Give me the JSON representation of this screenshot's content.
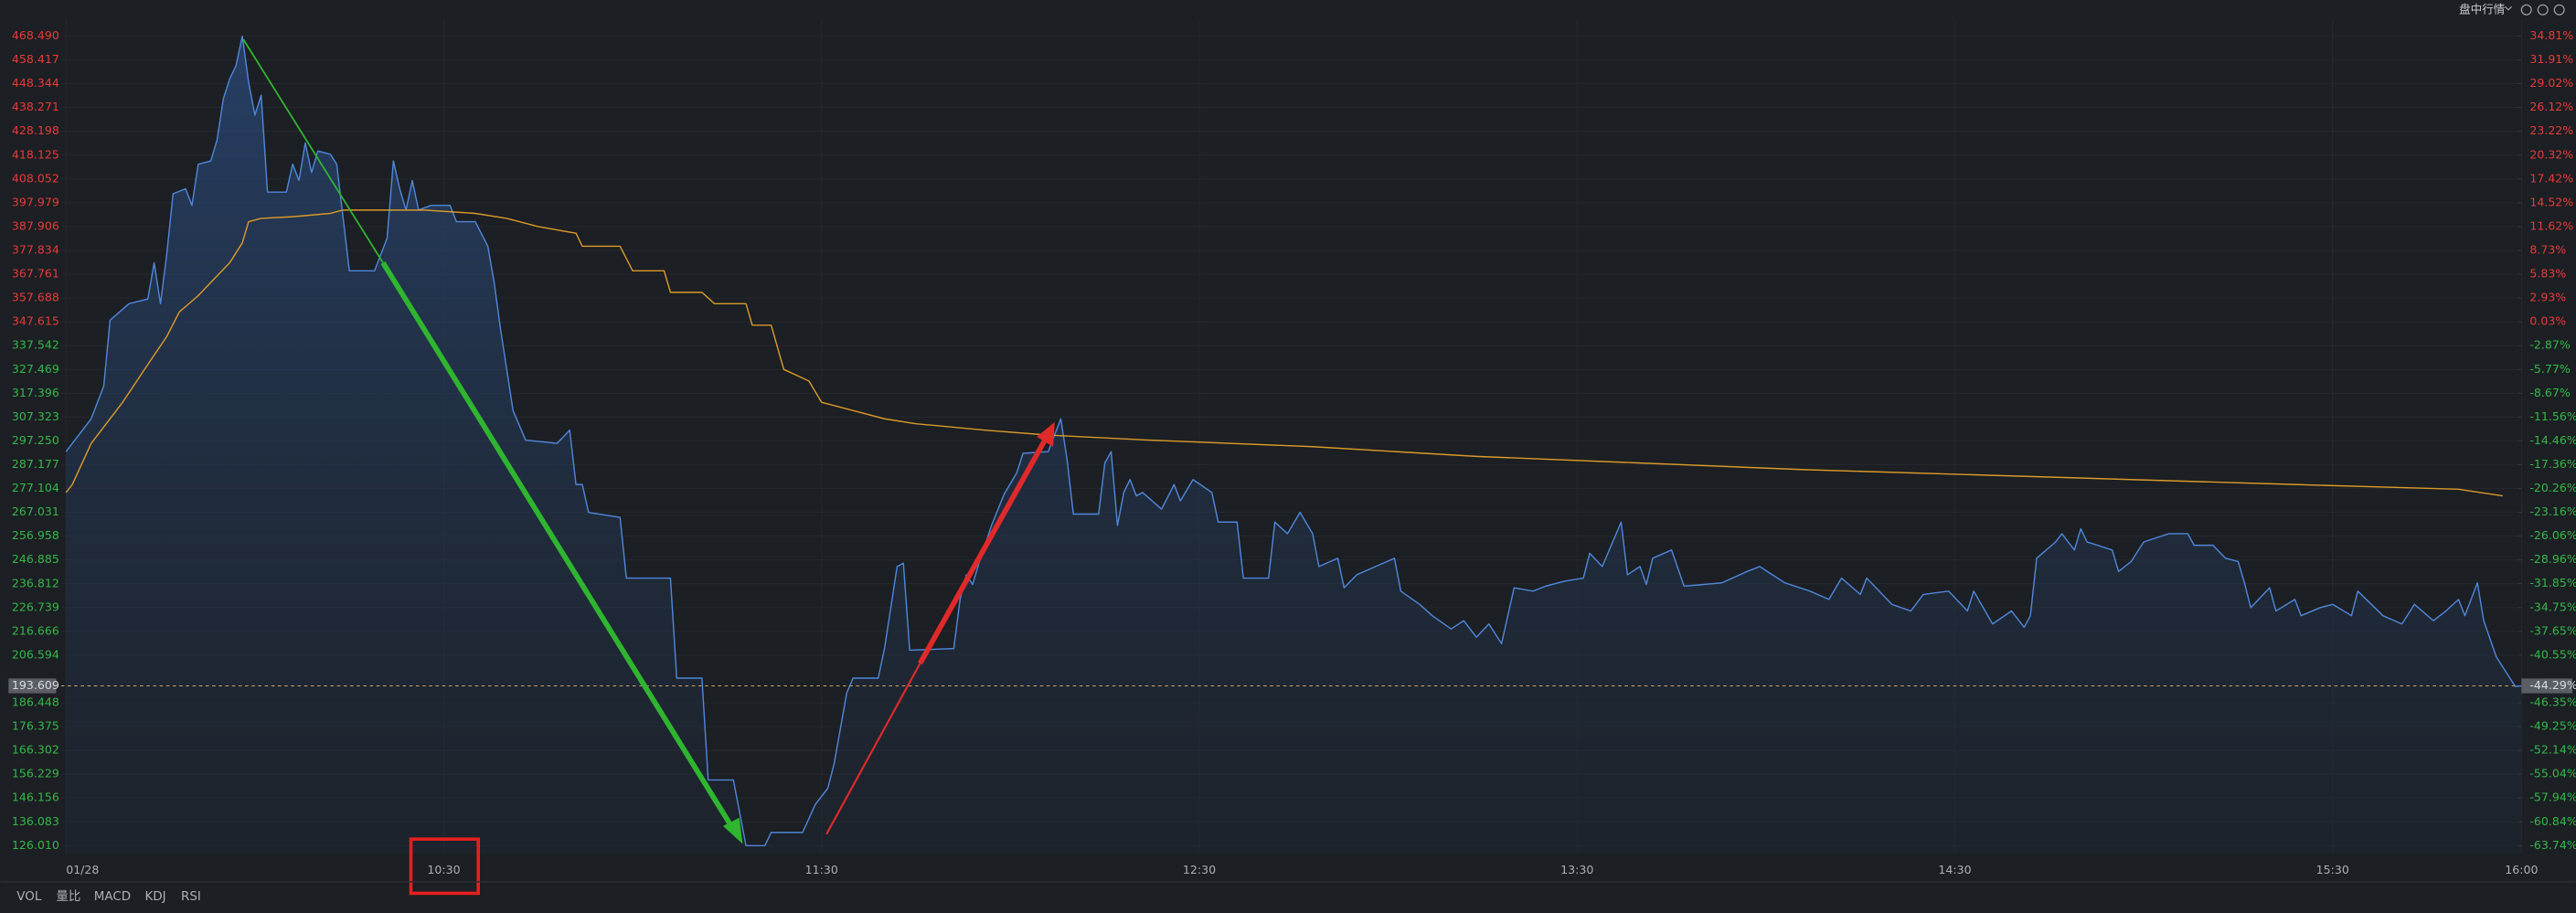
{
  "toolbar": {
    "title": "盘中行情"
  },
  "tabs": [
    "VOL",
    "量比",
    "MACD",
    "KDJ",
    "RSI"
  ],
  "chart_data": {
    "type": "line",
    "grid": true,
    "up_color": "#e83a3a",
    "down_color": "#35b84a",
    "xlim": [
      0,
      390
    ],
    "xticks": [
      {
        "value": 0,
        "label": "01/28"
      },
      {
        "value": 60,
        "label": "10:30"
      },
      {
        "value": 120,
        "label": "11:30"
      },
      {
        "value": 180,
        "label": "12:30"
      },
      {
        "value": 240,
        "label": "13:30"
      },
      {
        "value": 300,
        "label": "14:30"
      },
      {
        "value": 360,
        "label": "15:30"
      },
      {
        "value": 390,
        "label": "16:00"
      }
    ],
    "ylim": [
      126.01,
      468.49
    ],
    "yticks": [
      {
        "value": 468.49,
        "label": "468.490"
      },
      458.417,
      448.344,
      438.271,
      428.198,
      418.125,
      408.052,
      397.979,
      387.906,
      377.834,
      367.761,
      357.688,
      347.615,
      337.542,
      327.469,
      317.396,
      307.323,
      {
        "value": 297.25,
        "label": "297.250"
      },
      287.177,
      277.104,
      267.031,
      256.958,
      246.885,
      236.812,
      226.739,
      216.666,
      206.594,
      186.448,
      176.375,
      166.302,
      156.229,
      146.156,
      136.083,
      {
        "value": 126.01,
        "label": "126.010"
      }
    ],
    "y2lim": [
      -63.74,
      34.81
    ],
    "y2ticks": [
      {
        "value": 34.81,
        "label": "34.81%"
      },
      {
        "value": 31.91,
        "label": "31.91%"
      },
      {
        "value": 29.02,
        "label": "29.02%"
      },
      {
        "value": 26.12,
        "label": "26.12%"
      },
      {
        "value": 23.22,
        "label": "23.22%"
      },
      {
        "value": 20.32,
        "label": "20.32%"
      },
      {
        "value": 17.42,
        "label": "17.42%"
      },
      {
        "value": 14.52,
        "label": "14.52%"
      },
      {
        "value": 11.62,
        "label": "11.62%"
      },
      {
        "value": 8.73,
        "label": "8.73%"
      },
      {
        "value": 5.83,
        "label": "5.83%"
      },
      {
        "value": 2.93,
        "label": "2.93%"
      },
      {
        "value": 0.03,
        "label": "0.03%"
      },
      {
        "value": -2.87,
        "label": "-2.87%"
      },
      {
        "value": -5.77,
        "label": "-5.77%"
      },
      {
        "value": -8.67,
        "label": "-8.67%"
      },
      {
        "value": -11.56,
        "label": "-11.56%"
      },
      {
        "value": -14.46,
        "label": "-14.46%"
      },
      {
        "value": -17.36,
        "label": "-17.36%"
      },
      {
        "value": -20.26,
        "label": "-20.26%"
      },
      {
        "value": -23.16,
        "label": "-23.16%"
      },
      {
        "value": -26.06,
        "label": "-26.06%"
      },
      {
        "value": -28.96,
        "label": "-28.96%"
      },
      {
        "value": -31.85,
        "label": "-31.85%"
      },
      {
        "value": -34.75,
        "label": "-34.75%"
      },
      {
        "value": -37.65,
        "label": "-37.65%"
      },
      {
        "value": -40.55,
        "label": "-40.55%"
      },
      {
        "value": -46.35,
        "label": "-46.35%"
      },
      {
        "value": -49.25,
        "label": "-49.25%"
      },
      {
        "value": -52.14,
        "label": "-52.14%"
      },
      {
        "value": -55.04,
        "label": "-55.04%"
      },
      {
        "value": -57.94,
        "label": "-57.94%"
      },
      {
        "value": -60.84,
        "label": "-60.84%"
      },
      {
        "value": -63.74,
        "label": "-63.74%"
      }
    ],
    "last": {
      "value": 193.609,
      "y2": {
        "value": -44.29,
        "label": "-44.29%"
      }
    },
    "series": [
      {
        "color": "#4f86d9",
        "fill": true,
        "x": [
          0,
          4,
          6,
          7,
          10,
          13,
          14,
          15,
          16,
          17,
          19,
          20,
          21,
          23,
          24,
          25,
          26,
          27,
          28,
          29,
          30,
          31,
          32,
          35,
          36,
          37,
          38,
          39,
          40,
          42,
          43,
          45,
          49,
          51,
          52,
          53,
          54,
          55,
          56,
          58,
          61,
          62,
          65,
          67,
          68,
          69,
          70,
          71,
          73,
          78,
          80,
          81,
          82,
          83,
          88,
          89,
          96,
          97,
          101,
          102,
          106,
          108,
          111,
          112,
          117,
          119,
          121,
          122,
          124,
          125,
          129,
          130,
          131,
          132,
          133,
          134,
          141,
          142,
          143,
          144,
          145,
          147,
          149,
          151,
          152,
          156,
          157,
          158,
          159,
          160,
          164,
          165,
          166,
          167,
          168,
          169,
          170,
          171,
          174,
          176,
          177,
          179,
          182,
          183,
          186,
          187,
          191,
          192,
          194,
          196,
          198,
          199,
          202,
          203,
          205,
          208,
          211,
          212,
          215,
          217,
          220,
          222,
          224,
          226,
          228,
          230,
          233,
          235,
          238,
          241,
          242,
          244,
          247,
          248,
          250,
          251,
          252,
          255,
          257,
          263,
          267,
          269,
          273,
          277,
          280,
          282,
          285,
          286,
          290,
          293,
          295,
          299,
          302,
          303,
          306,
          309,
          311,
          312,
          313,
          316,
          317,
          319,
          320,
          321,
          325,
          326,
          328,
          330,
          334,
          337,
          338,
          341,
          343,
          345,
          346,
          347,
          350,
          351,
          354,
          355,
          358,
          360,
          363,
          364,
          368,
          371,
          373,
          376,
          378,
          380,
          381,
          383,
          384,
          386,
          389,
          390
        ],
        "values": [
          292.7,
          306.6,
          320.5,
          348.3,
          355.3,
          357.3,
          372.6,
          355.3,
          376.1,
          401.8,
          403.9,
          396.9,
          414.3,
          415.7,
          424.7,
          442.1,
          450.4,
          456,
          468.49,
          449,
          435.1,
          443.5,
          402.5,
          402.5,
          414.3,
          407.4,
          423.3,
          410.8,
          419.9,
          418.5,
          414.3,
          369.2,
          369.2,
          383,
          415.7,
          403.9,
          394.9,
          407.4,
          394.9,
          396.9,
          396.9,
          390,
          390,
          379.6,
          364.3,
          344.8,
          327.5,
          310.1,
          297.6,
          296.2,
          301.8,
          278.8,
          278.8,
          267,
          264.9,
          239.2,
          239.2,
          196.9,
          196.9,
          153.8,
          153.8,
          126.01,
          126.01,
          131.6,
          131.6,
          143.4,
          150.3,
          160.7,
          190.6,
          196.9,
          196.9,
          209.4,
          226.7,
          244.1,
          245.5,
          208.7,
          209.4,
          230.2,
          240.6,
          236.5,
          245.5,
          261.5,
          274.7,
          283.7,
          292,
          292.7,
          299.7,
          306.6,
          289.3,
          266.3,
          266.3,
          287.9,
          292.7,
          261.5,
          275.4,
          280.9,
          274,
          275.4,
          268.4,
          278.8,
          271.9,
          280.9,
          275.4,
          262.9,
          262.9,
          239.2,
          239.2,
          262.9,
          258,
          267,
          258,
          244.1,
          247.6,
          235.1,
          240.6,
          244.1,
          247.6,
          233.7,
          228.1,
          223.3,
          217.7,
          221.2,
          214.2,
          219.8,
          211.5,
          235.1,
          233.7,
          235.8,
          237.9,
          239.2,
          249.7,
          244.1,
          262.9,
          240.6,
          244.1,
          236.5,
          247.6,
          251.1,
          235.8,
          237.2,
          242,
          244.1,
          237.2,
          233.7,
          230.2,
          239.2,
          232.3,
          239.2,
          228.1,
          225.3,
          232.3,
          233.7,
          225.3,
          233.7,
          219.8,
          225.3,
          218.4,
          223.3,
          247.6,
          254.5,
          258,
          251.1,
          260.1,
          254.5,
          251.1,
          242,
          246.2,
          254.5,
          258,
          258,
          253.1,
          253.1,
          247.6,
          246.2,
          237.2,
          226.7,
          235.1,
          225.3,
          230.2,
          223.3,
          226.7,
          228.1,
          223.3,
          233.7,
          223.3,
          219.8,
          228.1,
          221.2,
          225.3,
          230.2,
          223.3,
          237.2,
          221.2,
          205.9,
          193.4,
          193.609
        ]
      },
      {
        "color": "#d99a2b",
        "fill": false,
        "x": [
          0,
          1,
          4,
          7,
          9,
          13,
          16,
          18,
          21,
          23,
          26,
          28,
          29,
          31,
          36,
          42,
          44,
          57,
          65,
          70,
          75,
          81,
          82,
          88,
          90,
          95,
          96,
          101,
          103,
          108,
          109,
          112,
          114,
          118,
          120,
          125,
          130,
          135,
          146,
          156,
          172,
          198,
          224,
          250,
          276,
          302,
          328,
          354,
          380,
          387
        ],
        "values": [
          275.4,
          278.8,
          296.2,
          306.6,
          313.6,
          329.6,
          341.4,
          351.8,
          358.7,
          364.3,
          372.6,
          381,
          390,
          391.4,
          392.1,
          393.5,
          394.9,
          394.9,
          393.5,
          391.4,
          387.9,
          385.1,
          379.6,
          379.6,
          369.2,
          369.2,
          360.1,
          360.1,
          355.3,
          355.3,
          346.2,
          346.2,
          327.5,
          322.6,
          313.6,
          310.1,
          306.6,
          304.5,
          301.8,
          299.7,
          297.6,
          294.8,
          290.7,
          287.9,
          285.1,
          283,
          280.9,
          278.8,
          276.8,
          274
        ]
      }
    ]
  }
}
